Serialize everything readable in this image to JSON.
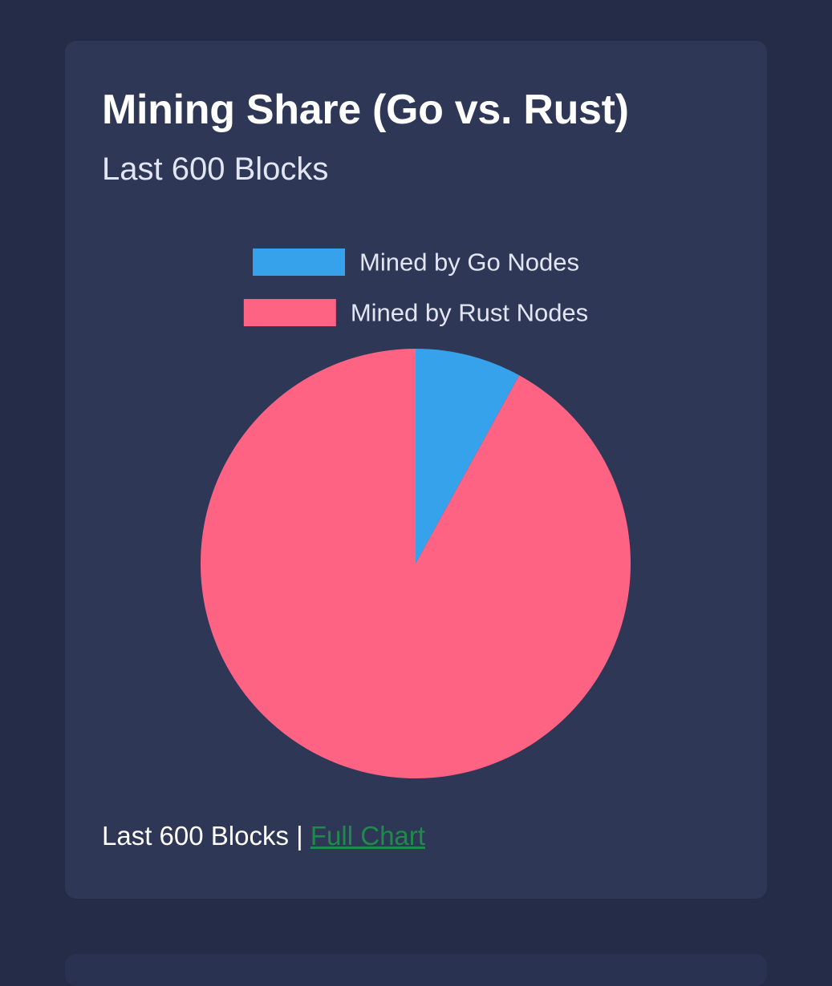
{
  "card": {
    "title": "Mining Share (Go vs. Rust)",
    "subtitle": "Last 600 Blocks"
  },
  "chart_data": {
    "type": "pie",
    "categories": [
      "Mined by Go Nodes",
      "Mined by Rust Nodes"
    ],
    "values": [
      48,
      552
    ],
    "colors": [
      "#36a2eb",
      "#ff6384"
    ],
    "legend": "top",
    "title": "",
    "xlabel": "",
    "ylabel": ""
  },
  "footer": {
    "text": "Last 600 Blocks",
    "separator": " | ",
    "link_label": "Full Chart"
  },
  "colors": {
    "page_background": "#252c48",
    "card_background": "#2e3756",
    "link": "#1f8a4c"
  }
}
